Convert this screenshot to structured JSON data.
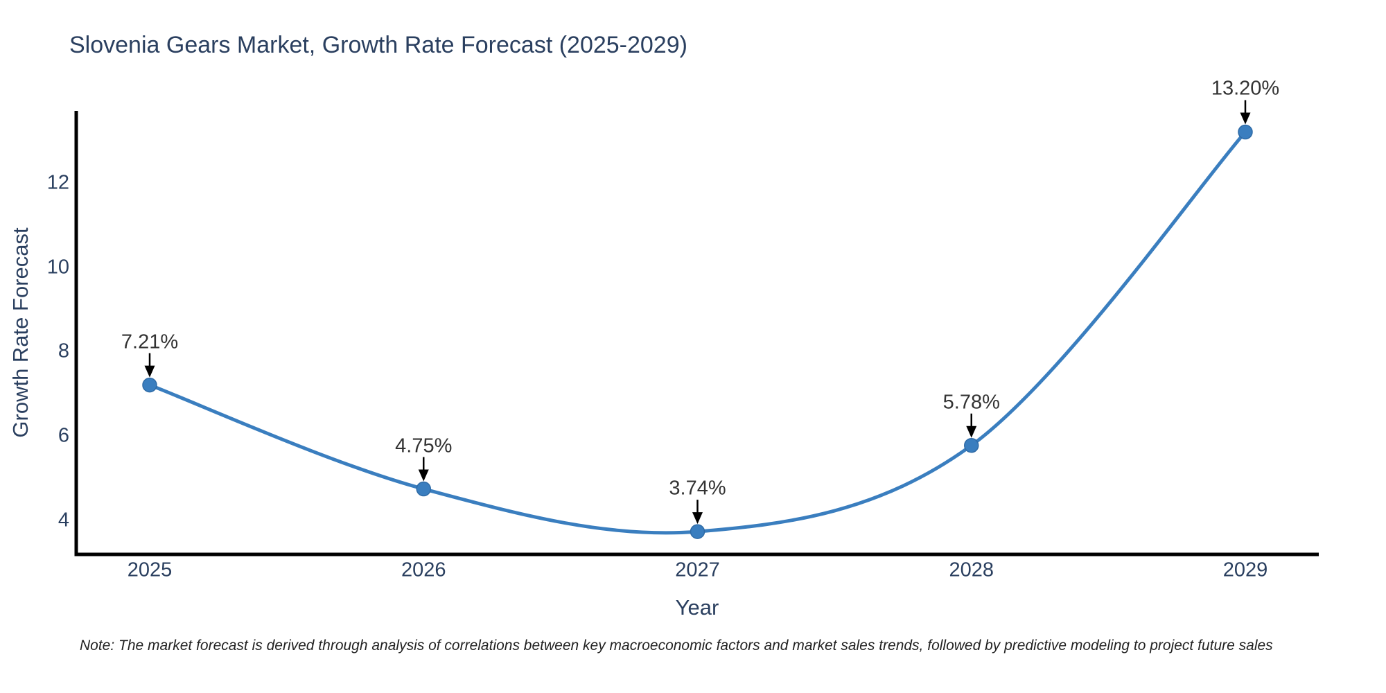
{
  "title": "Slovenia Gears Market, Growth Rate Forecast (2025-2029)",
  "note": "Note: The market forecast is derived through analysis of correlations between key macroeconomic factors and market sales trends, followed by predictive modeling to project future sales",
  "colors": {
    "background": "#ffffff",
    "title_text": "#2a3f5f",
    "tick_text": "#2a3f5f",
    "annotation_text": "#333333",
    "line": "#3a7ebf",
    "marker": "#3a7ebf",
    "marker_edge": "#2f6ba6",
    "axis": "#000000",
    "arrow": "#000000"
  },
  "chart_data": {
    "type": "line",
    "line_shape": "spline",
    "x": [
      2025,
      2026,
      2027,
      2028,
      2029
    ],
    "values": [
      7.21,
      4.75,
      3.74,
      5.78,
      13.2
    ],
    "point_labels": [
      "7.21%",
      "4.75%",
      "3.74%",
      "5.78%",
      "13.20%"
    ],
    "title": "Slovenia Gears Market, Growth Rate Forecast (2025-2029)",
    "xlabel": "Year",
    "ylabel": "Growth Rate Forecast",
    "yticks": [
      4,
      6,
      8,
      10,
      12
    ],
    "ylim": [
      3.2,
      13.7
    ],
    "grid": false,
    "legend": false
  }
}
